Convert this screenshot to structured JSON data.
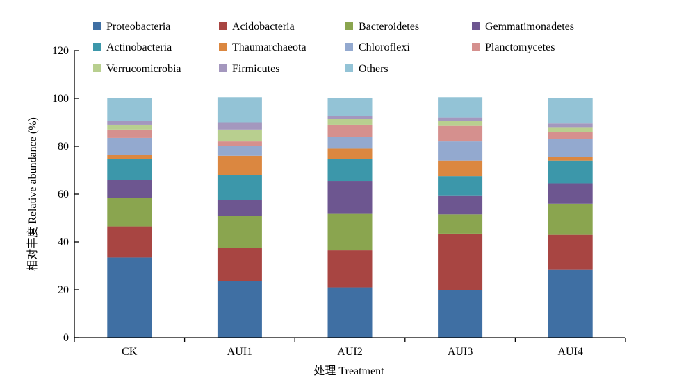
{
  "chart_data": {
    "type": "bar",
    "stacked": true,
    "categories": [
      "CK",
      "AUI1",
      "AUI2",
      "AUI3",
      "AUI4"
    ],
    "xlabel": "处理 Treatment",
    "ylabel": "相对丰度 Relative abundance (%)",
    "ylim": [
      0,
      120
    ],
    "yticks": [
      0,
      20,
      40,
      60,
      80,
      100,
      120
    ],
    "grid": false,
    "legend_position": "top",
    "series": [
      {
        "name": "Proteobacteria",
        "color": "#3F6FA3",
        "values": [
          33.5,
          23.5,
          21.0,
          20.0,
          28.5
        ]
      },
      {
        "name": "Acidobacteria",
        "color": "#A84542",
        "values": [
          13.0,
          14.0,
          15.5,
          23.5,
          14.5
        ]
      },
      {
        "name": "Bacteroidetes",
        "color": "#8AA54F",
        "values": [
          12.0,
          13.5,
          15.5,
          8.0,
          13.0
        ]
      },
      {
        "name": "Gemmatimonadetes",
        "color": "#6D5690",
        "values": [
          7.5,
          6.5,
          13.5,
          8.0,
          8.5
        ]
      },
      {
        "name": "Actinobacteria",
        "color": "#3C97AA",
        "values": [
          8.5,
          10.5,
          9.0,
          8.0,
          9.5
        ]
      },
      {
        "name": "Thaumarchaeota",
        "color": "#DB8740",
        "values": [
          2.0,
          8.0,
          4.5,
          6.5,
          1.5
        ]
      },
      {
        "name": "Chloroflexi",
        "color": "#93A9CF",
        "values": [
          7.0,
          4.0,
          5.0,
          8.0,
          7.5
        ]
      },
      {
        "name": "Planctomycetes",
        "color": "#D5908E",
        "values": [
          3.5,
          2.0,
          5.0,
          6.5,
          3.0
        ]
      },
      {
        "name": "Verrucomicrobia",
        "color": "#B8CF8F",
        "values": [
          2.0,
          5.0,
          2.5,
          2.0,
          2.0
        ]
      },
      {
        "name": "Firmicutes",
        "color": "#A497BE",
        "values": [
          1.5,
          3.0,
          1.0,
          1.5,
          1.5
        ]
      },
      {
        "name": "Others",
        "color": "#93C3D6",
        "values": [
          9.5,
          10.5,
          7.5,
          8.5,
          10.5
        ]
      }
    ]
  }
}
